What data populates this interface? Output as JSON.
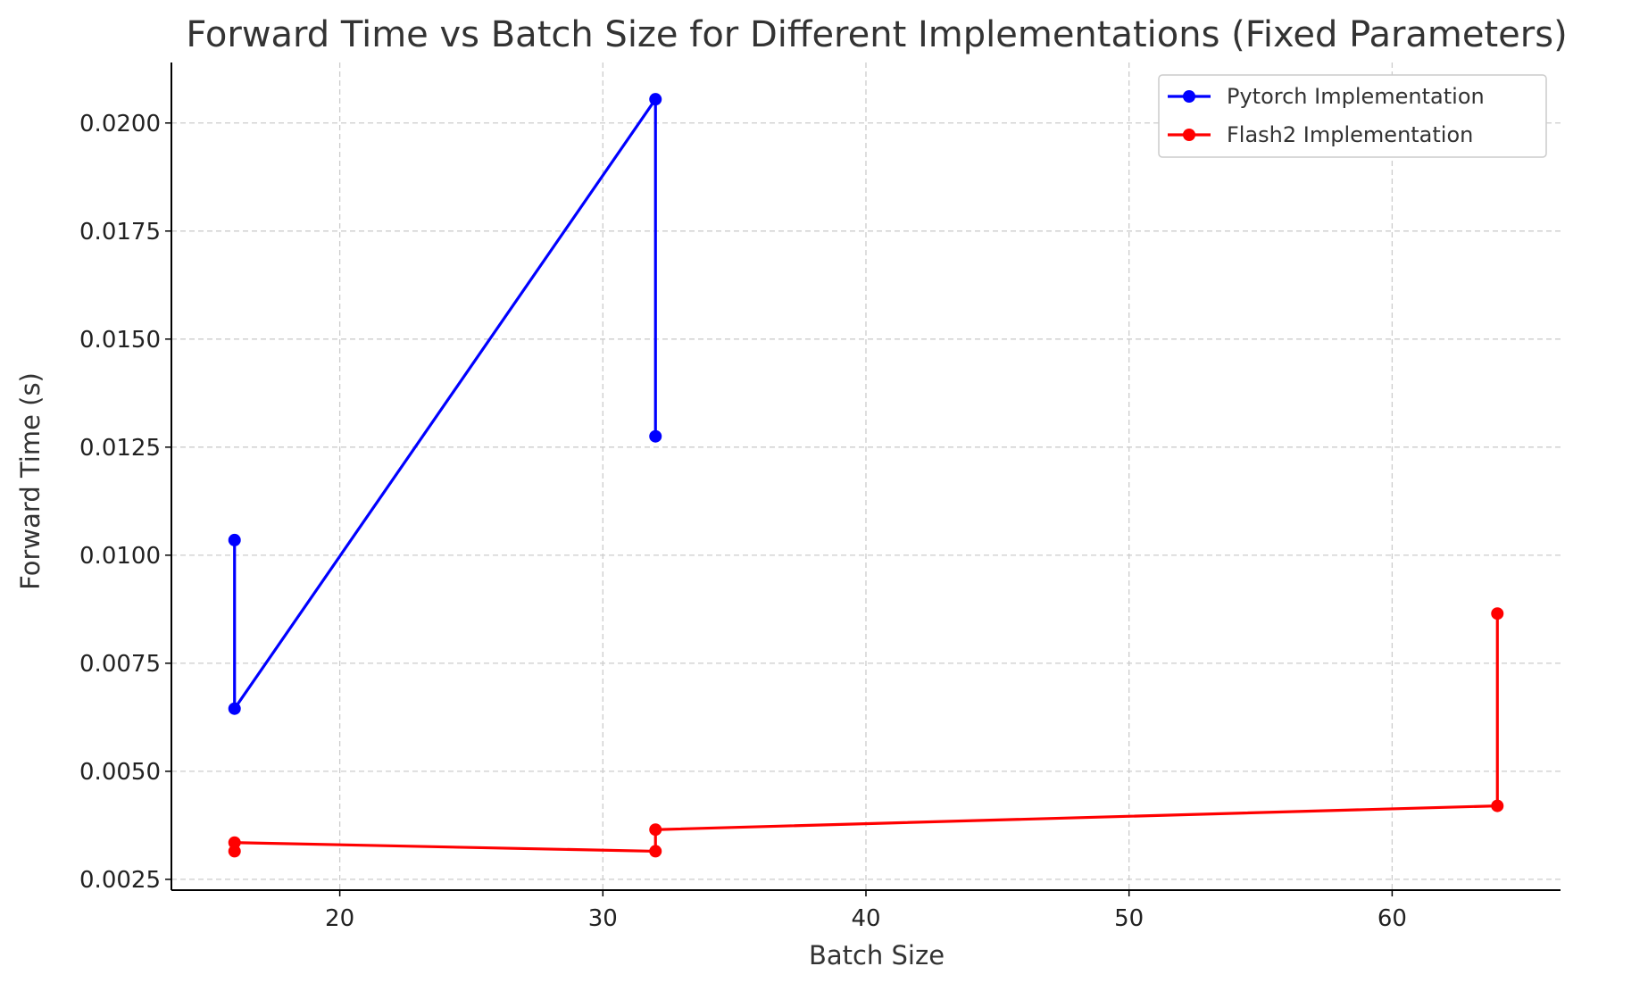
{
  "chart_data": {
    "type": "line",
    "title": "Forward Time vs Batch Size for Different Implementations (Fixed Parameters)",
    "xlabel": "Batch Size",
    "ylabel": "Forward Time (s)",
    "xlim": [
      13.6,
      66.4
    ],
    "ylim": [
      0.00225,
      0.0214
    ],
    "x_ticks": [
      20,
      30,
      40,
      50,
      60
    ],
    "x_tick_labels": [
      "20",
      "30",
      "40",
      "50",
      "60"
    ],
    "y_ticks": [
      0.0025,
      0.005,
      0.0075,
      0.01,
      0.0125,
      0.015,
      0.0175,
      0.02
    ],
    "y_tick_labels": [
      "0.0025",
      "0.0050",
      "0.0075",
      "0.0100",
      "0.0125",
      "0.0150",
      "0.0175",
      "0.0200"
    ],
    "grid": true,
    "legend_position": "top-right",
    "series": [
      {
        "name": "Pytorch Implementation",
        "color": "#0000ff",
        "points": [
          [
            16,
            0.01035
          ],
          [
            16,
            0.00645
          ],
          [
            32,
            0.02055
          ],
          [
            32,
            0.01275
          ]
        ]
      },
      {
        "name": "Flash2 Implementation",
        "color": "#ff0000",
        "points": [
          [
            16,
            0.00315
          ],
          [
            16,
            0.00335
          ],
          [
            32,
            0.00315
          ],
          [
            32,
            0.00365
          ],
          [
            64,
            0.0042
          ],
          [
            64,
            0.00865
          ]
        ]
      }
    ]
  }
}
